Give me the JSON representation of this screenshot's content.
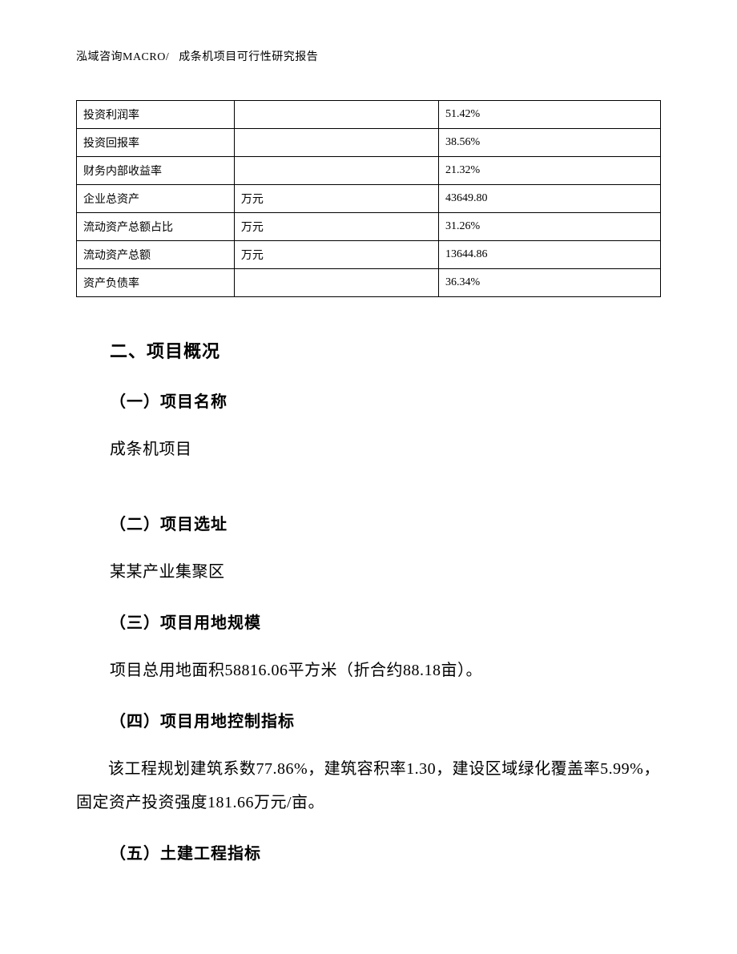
{
  "header": {
    "company": "泓域咨询MACRO/",
    "doc_title": "成条机项目可行性研究报告"
  },
  "table": {
    "rows": [
      {
        "label": "投资利润率",
        "unit": "",
        "value": "51.42%"
      },
      {
        "label": "投资回报率",
        "unit": "",
        "value": "38.56%"
      },
      {
        "label": "财务内部收益率",
        "unit": "",
        "value": "21.32%"
      },
      {
        "label": "企业总资产",
        "unit": "万元",
        "value": "43649.80"
      },
      {
        "label": "流动资产总额占比",
        "unit": "万元",
        "value": "31.26%"
      },
      {
        "label": "流动资产总额",
        "unit": "万元",
        "value": "13644.86"
      },
      {
        "label": "资产负债率",
        "unit": "",
        "value": "36.34%"
      }
    ]
  },
  "sections": {
    "main_title": "二、项目概况",
    "s1_title": "（一）项目名称",
    "s1_body": "成条机项目",
    "s2_title": "（二）项目选址",
    "s2_body": "某某产业集聚区",
    "s3_title": "（三）项目用地规模",
    "s3_body": "项目总用地面积58816.06平方米（折合约88.18亩）。",
    "s4_title": "（四）项目用地控制指标",
    "s4_body": "该工程规划建筑系数77.86%，建筑容积率1.30，建设区域绿化覆盖率5.99%，固定资产投资强度181.66万元/亩。",
    "s5_title": "（五）土建工程指标"
  }
}
